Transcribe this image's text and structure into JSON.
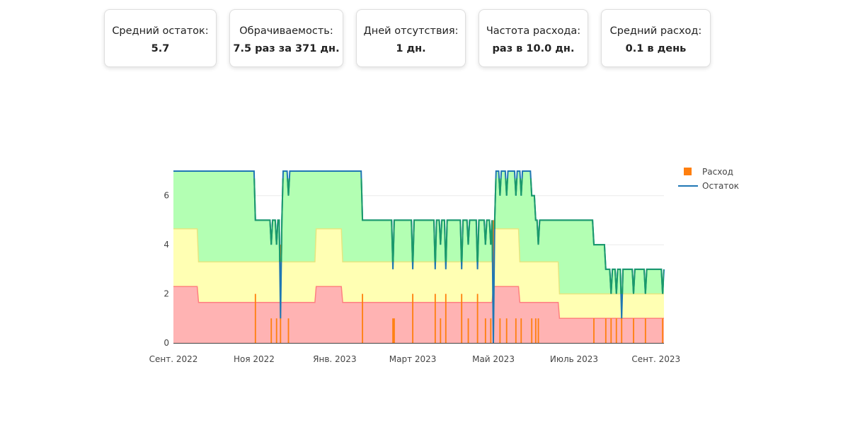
{
  "stats": [
    {
      "label": "Средний остаток:",
      "value": "5.7"
    },
    {
      "label": "Обрачиваемость:",
      "value": "7.5 раз за 371 дн."
    },
    {
      "label": "Дней отсутствия:",
      "value": "1 дн."
    },
    {
      "label": "Частота расхода:",
      "value": "раз в 10.0 дн."
    },
    {
      "label": "Средний расход:",
      "value": "0.1 в день"
    }
  ],
  "chart_data": {
    "type": "line",
    "x_start": "2022-09-01",
    "x_end": "2023-09-07",
    "ylim": [
      0,
      7
    ],
    "yticks": [
      "0",
      "2",
      "4",
      "6"
    ],
    "xticks": [
      {
        "date": "2022-09-01",
        "label": "Сент. 2022"
      },
      {
        "date": "2022-11-01",
        "label": "Ноя 2022"
      },
      {
        "date": "2023-01-01",
        "label": "Янв. 2023"
      },
      {
        "date": "2023-03-01",
        "label": "Март 2023"
      },
      {
        "date": "2023-05-01",
        "label": "Май 2023"
      },
      {
        "date": "2023-07-01",
        "label": "Июль 2023"
      },
      {
        "date": "2023-09-01",
        "label": "Сент. 2023"
      }
    ],
    "grid": true,
    "legend_position": "top-right",
    "legend": [
      {
        "name": "Расход",
        "color": "#ff7f0e"
      },
      {
        "name": "Остаток",
        "color": "#1f77b4"
      }
    ],
    "zones": {
      "dates": [
        "2022-09-01",
        "2022-09-19",
        "2022-09-20",
        "2022-12-17",
        "2022-12-18",
        "2023-01-06",
        "2023-01-07",
        "2023-04-30",
        "2023-05-01",
        "2023-05-20",
        "2023-05-21",
        "2023-06-19",
        "2023-06-20",
        "2023-07-19",
        "2023-07-20",
        "2023-09-07"
      ],
      "red": [
        2.3,
        2.3,
        1.65,
        1.65,
        2.3,
        2.3,
        1.65,
        1.65,
        2.3,
        2.3,
        1.65,
        1.65,
        1.0,
        1.0,
        1.0,
        1.0
      ],
      "yellow": [
        4.65,
        4.65,
        3.3,
        3.3,
        4.65,
        4.65,
        3.3,
        3.3,
        4.65,
        4.65,
        3.3,
        3.3,
        2.0,
        2.0,
        2.0,
        2.0
      ],
      "colors": {
        "red": "#ffb3b3",
        "yellow": "#ffffb3",
        "green": "#b3ffb3",
        "red_line": "#ff8080",
        "yellow_line": "#e6e680",
        "green_line": "#80e680"
      }
    },
    "stock": {
      "name": "Остаток",
      "color": "#1f77b4",
      "high_color": "#2ca02c",
      "points": [
        [
          "2022-09-01",
          7
        ],
        [
          "2022-11-01",
          7
        ],
        [
          "2022-11-02",
          5
        ],
        [
          "2022-11-13",
          5
        ],
        [
          "2022-11-14",
          4
        ],
        [
          "2022-11-15",
          5
        ],
        [
          "2022-11-17",
          5
        ],
        [
          "2022-11-18",
          4
        ],
        [
          "2022-11-19",
          5
        ],
        [
          "2022-11-20",
          5
        ],
        [
          "2022-11-21",
          1
        ],
        [
          "2022-11-22",
          5
        ],
        [
          "2022-11-23",
          7
        ],
        [
          "2022-11-26",
          7
        ],
        [
          "2022-11-27",
          6
        ],
        [
          "2022-11-28",
          7
        ],
        [
          "2023-01-21",
          7
        ],
        [
          "2023-01-22",
          5
        ],
        [
          "2023-02-13",
          5
        ],
        [
          "2023-02-14",
          3
        ],
        [
          "2023-02-15",
          5
        ],
        [
          "2023-02-28",
          5
        ],
        [
          "2023-03-01",
          3
        ],
        [
          "2023-03-02",
          5
        ],
        [
          "2023-03-17",
          5
        ],
        [
          "2023-03-18",
          3
        ],
        [
          "2023-03-19",
          5
        ],
        [
          "2023-03-21",
          5
        ],
        [
          "2023-03-22",
          4
        ],
        [
          "2023-03-23",
          5
        ],
        [
          "2023-03-25",
          5
        ],
        [
          "2023-03-26",
          3
        ],
        [
          "2023-03-27",
          5
        ],
        [
          "2023-04-06",
          5
        ],
        [
          "2023-04-07",
          3
        ],
        [
          "2023-04-08",
          5
        ],
        [
          "2023-04-11",
          5
        ],
        [
          "2023-04-12",
          4
        ],
        [
          "2023-04-13",
          5
        ],
        [
          "2023-04-18",
          5
        ],
        [
          "2023-04-19",
          3
        ],
        [
          "2023-04-20",
          5
        ],
        [
          "2023-04-24",
          5
        ],
        [
          "2023-04-25",
          4
        ],
        [
          "2023-04-26",
          5
        ],
        [
          "2023-04-28",
          5
        ],
        [
          "2023-04-29",
          4
        ],
        [
          "2023-04-30",
          5
        ],
        [
          "2023-05-01",
          0
        ],
        [
          "2023-05-02",
          5
        ],
        [
          "2023-05-03",
          7
        ],
        [
          "2023-05-05",
          7
        ],
        [
          "2023-05-06",
          6
        ],
        [
          "2023-05-07",
          7
        ],
        [
          "2023-05-10",
          7
        ],
        [
          "2023-05-11",
          6
        ],
        [
          "2023-05-12",
          7
        ],
        [
          "2023-05-17",
          7
        ],
        [
          "2023-05-18",
          6
        ],
        [
          "2023-05-19",
          7
        ],
        [
          "2023-05-21",
          7
        ],
        [
          "2023-05-22",
          6
        ],
        [
          "2023-05-23",
          7
        ],
        [
          "2023-05-29",
          7
        ],
        [
          "2023-05-30",
          6
        ],
        [
          "2023-06-01",
          6
        ],
        [
          "2023-06-02",
          5
        ],
        [
          "2023-06-03",
          5
        ],
        [
          "2023-06-04",
          4
        ],
        [
          "2023-06-05",
          5
        ],
        [
          "2023-07-15",
          5
        ],
        [
          "2023-07-16",
          4
        ],
        [
          "2023-07-24",
          4
        ],
        [
          "2023-07-25",
          3
        ],
        [
          "2023-07-28",
          3
        ],
        [
          "2023-07-29",
          2
        ],
        [
          "2023-07-30",
          3
        ],
        [
          "2023-08-01",
          3
        ],
        [
          "2023-08-02",
          2
        ],
        [
          "2023-08-03",
          3
        ],
        [
          "2023-08-05",
          3
        ],
        [
          "2023-08-06",
          1
        ],
        [
          "2023-08-07",
          3
        ],
        [
          "2023-08-14",
          3
        ],
        [
          "2023-08-15",
          2
        ],
        [
          "2023-08-16",
          3
        ],
        [
          "2023-08-23",
          3
        ],
        [
          "2023-08-24",
          2
        ],
        [
          "2023-08-25",
          3
        ],
        [
          "2023-09-05",
          3
        ],
        [
          "2023-09-06",
          2
        ],
        [
          "2023-09-07",
          3
        ]
      ]
    },
    "consumption": {
      "name": "Расход",
      "color": "#ff7f0e",
      "points": [
        [
          "2022-11-02",
          2
        ],
        [
          "2022-11-14",
          1
        ],
        [
          "2022-11-18",
          1
        ],
        [
          "2022-11-21",
          4
        ],
        [
          "2022-11-27",
          1
        ],
        [
          "2023-01-22",
          2
        ],
        [
          "2023-02-14",
          1
        ],
        [
          "2023-02-15",
          1
        ],
        [
          "2023-03-01",
          2
        ],
        [
          "2023-03-18",
          2
        ],
        [
          "2023-03-22",
          1
        ],
        [
          "2023-03-26",
          2
        ],
        [
          "2023-04-07",
          2
        ],
        [
          "2023-04-12",
          1
        ],
        [
          "2023-04-19",
          2
        ],
        [
          "2023-04-25",
          1
        ],
        [
          "2023-04-29",
          1
        ],
        [
          "2023-05-01",
          5
        ],
        [
          "2023-05-06",
          1
        ],
        [
          "2023-05-11",
          1
        ],
        [
          "2023-05-18",
          1
        ],
        [
          "2023-05-22",
          1
        ],
        [
          "2023-05-30",
          1
        ],
        [
          "2023-06-02",
          1
        ],
        [
          "2023-06-04",
          1
        ],
        [
          "2023-07-16",
          1
        ],
        [
          "2023-07-25",
          1
        ],
        [
          "2023-07-29",
          1
        ],
        [
          "2023-08-02",
          1
        ],
        [
          "2023-08-06",
          2
        ],
        [
          "2023-08-15",
          1
        ],
        [
          "2023-08-24",
          1
        ],
        [
          "2023-09-06",
          1
        ]
      ]
    }
  }
}
